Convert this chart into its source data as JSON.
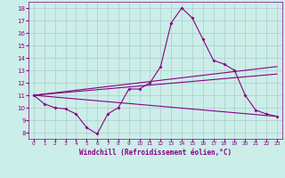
{
  "xlabel": "Windchill (Refroidissement éolien,°C)",
  "bg_color": "#cceee8",
  "line_color": "#880088",
  "grid_color": "#aacccc",
  "xlim": [
    -0.5,
    23.5
  ],
  "ylim": [
    7.5,
    18.5
  ],
  "xticks": [
    0,
    1,
    2,
    3,
    4,
    5,
    6,
    7,
    8,
    9,
    10,
    11,
    12,
    13,
    14,
    15,
    16,
    17,
    18,
    19,
    20,
    21,
    22,
    23
  ],
  "yticks": [
    8,
    9,
    10,
    11,
    12,
    13,
    14,
    15,
    16,
    17,
    18
  ],
  "line1_x": [
    0,
    1,
    2,
    3,
    4,
    5,
    6,
    7,
    8,
    9,
    10,
    11,
    12,
    13,
    14,
    15,
    16,
    17,
    18,
    19,
    20,
    21,
    22,
    23
  ],
  "line1_y": [
    11.0,
    10.3,
    10.0,
    9.9,
    9.5,
    8.4,
    7.9,
    9.5,
    10.0,
    11.5,
    11.5,
    12.0,
    13.3,
    16.8,
    18.0,
    17.2,
    15.5,
    13.8,
    13.5,
    13.0,
    11.0,
    9.8,
    9.5,
    9.3
  ],
  "line2_x": [
    0,
    23
  ],
  "line2_y": [
    11.0,
    9.3
  ],
  "line3_x": [
    0,
    23
  ],
  "line3_y": [
    11.0,
    12.7
  ],
  "line4_x": [
    0,
    23
  ],
  "line4_y": [
    11.0,
    13.3
  ]
}
